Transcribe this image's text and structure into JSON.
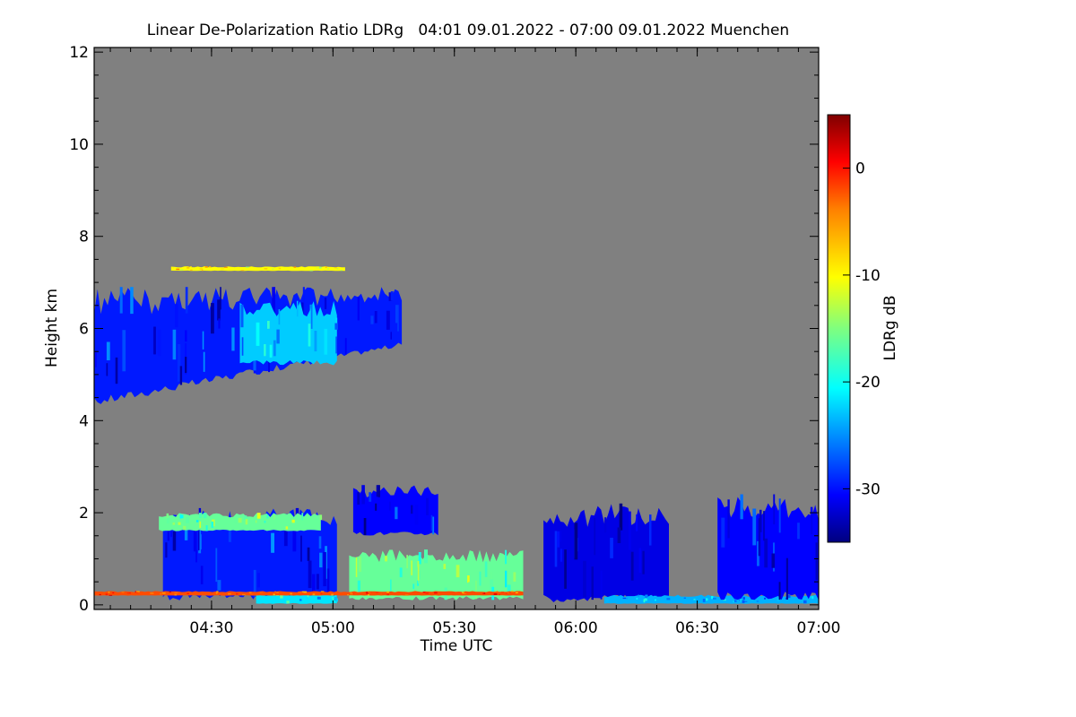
{
  "chart_data": {
    "type": "heatmap",
    "title": "Linear De-Polarization Ratio LDRg   04:01 09.01.2022 - 07:00 09.01.2022 Muenchen",
    "xlabel": "Time UTC",
    "ylabel": "Height km",
    "colorbar_label": "LDRg dB",
    "x_range_minutes": [
      0,
      179
    ],
    "x_ticks": [
      {
        "label": "04:30",
        "value": 29
      },
      {
        "label": "05:00",
        "value": 59
      },
      {
        "label": "05:30",
        "value": 89
      },
      {
        "label": "06:00",
        "value": 119
      },
      {
        "label": "06:30",
        "value": 149
      },
      {
        "label": "07:00",
        "value": 179
      }
    ],
    "y_range_km": [
      -0.1,
      12.1
    ],
    "y_ticks": [
      0,
      2,
      4,
      6,
      8,
      10,
      12
    ],
    "colorbar_range_db": [
      -35,
      5
    ],
    "colorbar_ticks": [
      0,
      -10,
      -20,
      -30
    ],
    "colors": {
      "background_nodata": "#808080",
      "colormap": [
        "#00007f",
        "#0000ff",
        "#007fff",
        "#00ffff",
        "#7fff7f",
        "#ffff00",
        "#ff7f00",
        "#ff0000",
        "#7f0000"
      ]
    },
    "features": [
      {
        "name": "cirrus-layer",
        "t_start": 0,
        "t_end": 76,
        "h_bottom_start": 4.3,
        "h_bottom_end": 5.6,
        "h_top": 6.9,
        "ldr_db": -29
      },
      {
        "name": "cirrus-fringe",
        "t_start": 36,
        "t_end": 60,
        "h_bottom": 5.2,
        "h_top": 6.6,
        "ldr_db": -22
      },
      {
        "name": "cirrus-trace",
        "t_start": 19,
        "t_end": 62,
        "h_bottom": 7.25,
        "h_top": 7.35,
        "ldr_db": -10
      },
      {
        "name": "low-cloud-a",
        "t_start": 17,
        "t_end": 60,
        "h_bottom": 0.1,
        "h_top": 2.1,
        "ldr_db": -29
      },
      {
        "name": "low-cloud-a-top",
        "t_start": 16,
        "t_end": 56,
        "h_bottom": 1.6,
        "h_top": 2.0,
        "ldr_db": -16
      },
      {
        "name": "low-cloud-a-base",
        "t_start": 40,
        "t_end": 60,
        "h_bottom": 0.02,
        "h_top": 0.25,
        "ldr_db": -21
      },
      {
        "name": "mid-cloud",
        "t_start": 64,
        "t_end": 85,
        "h_bottom": 1.5,
        "h_top": 2.6,
        "ldr_db": -30
      },
      {
        "name": "drizzle-zone",
        "t_start": 63,
        "t_end": 106,
        "h_bottom": 0.1,
        "h_top": 1.2,
        "ldr_db": -16
      },
      {
        "name": "low-cloud-b",
        "t_start": 111,
        "t_end": 142,
        "h_bottom": 0.05,
        "h_top": 2.2,
        "ldr_db": -31
      },
      {
        "name": "low-cloud-b-base",
        "t_start": 126,
        "t_end": 179,
        "h_bottom": 0.02,
        "h_top": 0.22,
        "ldr_db": -23
      },
      {
        "name": "low-cloud-c",
        "t_start": 154,
        "t_end": 179,
        "h_bottom": 0.1,
        "h_top": 2.4,
        "ldr_db": -30
      },
      {
        "name": "near-surface-layer",
        "t_start": 0,
        "t_end": 106,
        "h_bottom": 0.2,
        "h_top": 0.3,
        "ldr_db": -3
      }
    ]
  }
}
